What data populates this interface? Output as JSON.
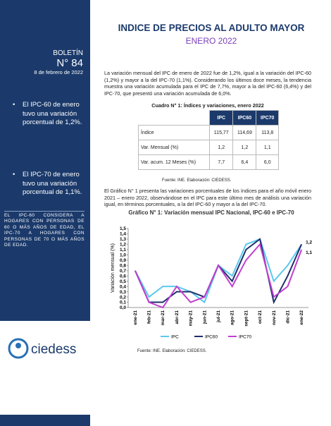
{
  "header": {
    "title": "INDICE DE PRECIOS AL ADULTO MAYOR",
    "subtitle": "ENERO 2022"
  },
  "sidebar": {
    "label": "BOLETÍN",
    "number": "N° 84",
    "date": "8 de febrero de 2022",
    "bullets": [
      "El IPC-60 de enero tuvo una variación porcentual de 1,2%.",
      "El IPC-70 de enero tuvo una variación porcentual de 1,1%."
    ],
    "note": "EL IPC-60 CONSIDERA A HOGARES CON PERSONAS DE 60 O MÁS AÑOS DE EDAD, EL IPC-70 A HOGARES CON PERSONAS DE 70 O MÁS AÑOS DE EDAD.",
    "logo": "ciedess"
  },
  "paragraphs": [
    "La variación mensual del IPC de enero de 2022 fue de 1,2%, igual a la variación del IPC-60 (1,2%) y mayor a la del IPC-70 (1,1%). Considerando los últimos doce meses, la tendencia muestra una variación acumulada para el IPC de 7,7%, mayor a la del IPC-60 (6,4%) y del IPC-70, que presentó una variación acumulada de 6,0%.",
    "El Gráfico N° 1 presenta las variaciones porcentuales de los índices para el año móvil enero 2021 – enero 2022, observándose en el IPC para este último mes de análisis una variación igual, en términos porcentuales, a la del IPC-60 y mayor a la del IPC-70."
  ],
  "table": {
    "caption": "Cuadro N° 1: Índices y variaciones, enero 2022",
    "columns": [
      "IPC",
      "IPC60",
      "IPC70"
    ],
    "rows": [
      [
        "Índice",
        "115,77",
        "114,69",
        "113,8"
      ],
      [
        "Var. Mensual (%)",
        "1,2",
        "1,2",
        "1,1"
      ],
      [
        "Var. acum. 12 Meses (%)",
        "7,7",
        "6,4",
        "6,0"
      ]
    ],
    "source": "Fuente: INE. Elaboración: CIEDESS."
  },
  "chart_data": {
    "type": "line",
    "title": "Gráfico N° 1: Variación mensual IPC Nacional, IPC-60 e IPC-70",
    "y_label": "Variación mensual (%)",
    "categories": [
      "ene-21",
      "feb-21",
      "mar-21",
      "abr-21",
      "may-21",
      "jun-21",
      "jul-21",
      "ago-21",
      "sept-21",
      "oct-21",
      "nov-21",
      "dic-21",
      "ene-22"
    ],
    "series": [
      {
        "name": "IPC",
        "color": "#5bc8ee",
        "values": [
          0.7,
          0.2,
          0.4,
          0.4,
          0.3,
          0.1,
          0.8,
          0.6,
          1.2,
          1.3,
          0.5,
          0.8,
          1.2
        ]
      },
      {
        "name": "IPC60",
        "color": "#1f2f6b",
        "values": [
          0.7,
          0.1,
          0.1,
          0.3,
          0.3,
          0.2,
          0.8,
          0.5,
          1.1,
          1.3,
          0.1,
          0.6,
          1.2
        ],
        "value_labels": [
          null,
          null,
          null,
          null,
          null,
          null,
          null,
          null,
          null,
          null,
          null,
          null,
          "1,2"
        ]
      },
      {
        "name": "IPC70",
        "color": "#c03fd0",
        "values": [
          0.7,
          0.1,
          0.0,
          0.4,
          0.1,
          0.2,
          0.8,
          0.4,
          0.9,
          1.2,
          0.2,
          0.4,
          1.1
        ],
        "value_labels": [
          null,
          null,
          null,
          null,
          null,
          null,
          null,
          null,
          null,
          null,
          null,
          null,
          "1,1"
        ]
      }
    ],
    "ylim": [
      0,
      1.5
    ],
    "yticks": [
      {
        "value": 0,
        "label": "0,0"
      },
      {
        "value": 0.1,
        "label": "0,1"
      },
      {
        "value": 0.2,
        "label": "0,2"
      },
      {
        "value": 0.3,
        "label": "0,3"
      },
      {
        "value": 0.4,
        "label": "0,4"
      },
      {
        "value": 0.5,
        "label": "0,5"
      },
      {
        "value": 0.6,
        "label": "0,6"
      },
      {
        "value": 0.7,
        "label": "0,7"
      },
      {
        "value": 0.8,
        "label": "0,8"
      },
      {
        "value": 0.9,
        "label": "0,9"
      },
      {
        "value": 1,
        "label": "1,0"
      },
      {
        "value": 1.1,
        "label": "1,1"
      },
      {
        "value": 1.2,
        "label": "1,2"
      },
      {
        "value": 1.3,
        "label": "1,3"
      },
      {
        "value": 1.4,
        "label": "1,4"
      },
      {
        "value": 1.5,
        "label": "1,5"
      }
    ],
    "grid": false,
    "legend": "bottom",
    "source": "Fuente: INE. Elaboración: CIEDESS."
  }
}
